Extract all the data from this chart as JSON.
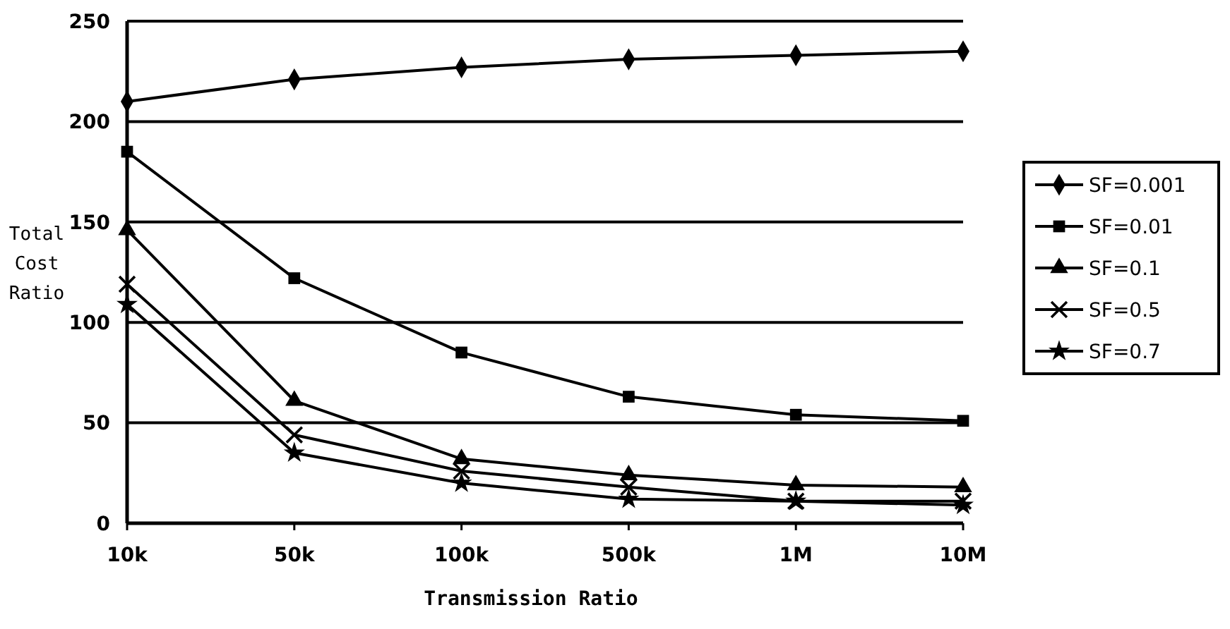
{
  "chart_data": {
    "type": "line",
    "xlabel": "Transmission Ratio",
    "ylabel": "Total Cost Ratio",
    "categories": [
      "10k",
      "50k",
      "100k",
      "500k",
      "1M",
      "10M"
    ],
    "ylim": [
      0,
      250
    ],
    "yticks": [
      0,
      50,
      100,
      150,
      200,
      250
    ],
    "grid": "y",
    "legend": "right",
    "line_style": "solid",
    "series": [
      {
        "name": "SF=0.001",
        "color": "#000000",
        "marker": "diamond",
        "values": [
          210,
          221,
          227,
          231,
          233,
          235
        ]
      },
      {
        "name": "SF=0.01",
        "color": "#000000",
        "marker": "square",
        "values": [
          185,
          122,
          85,
          63,
          54,
          51
        ]
      },
      {
        "name": "SF=0.1",
        "color": "#000000",
        "marker": "triangle",
        "values": [
          146,
          61,
          32,
          24,
          19,
          18
        ]
      },
      {
        "name": "SF=0.5",
        "color": "#000000",
        "marker": "cross",
        "values": [
          119,
          44,
          26,
          18,
          11,
          11
        ]
      },
      {
        "name": "SF=0.7",
        "color": "#000000",
        "marker": "star",
        "values": [
          109,
          35,
          20,
          12,
          11,
          9
        ]
      }
    ]
  }
}
